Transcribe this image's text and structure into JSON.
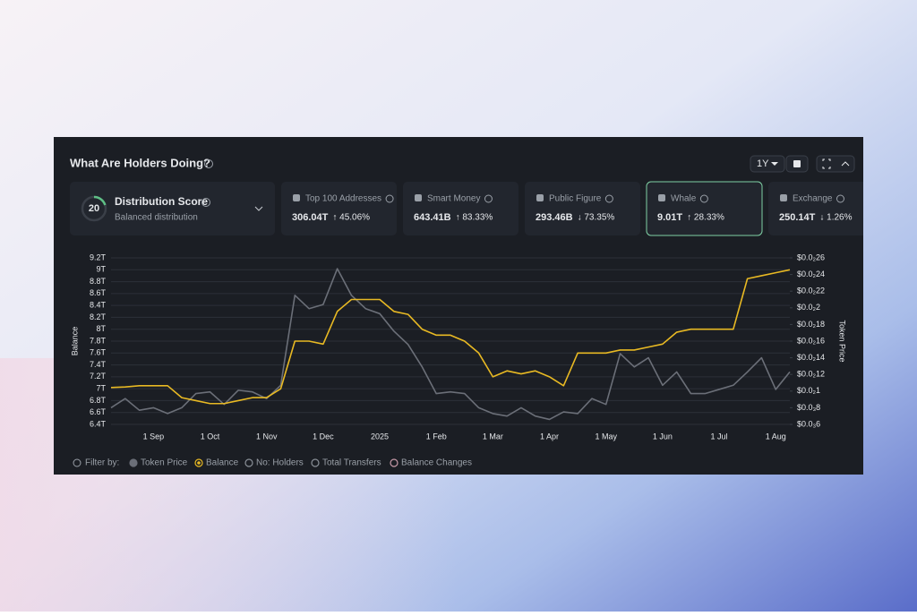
{
  "header": {
    "title": "What Are Holders Doing?",
    "range": "1Y"
  },
  "distribution": {
    "score": 20,
    "title": "Distribution Score",
    "subtitle": "Balanced distribution"
  },
  "cards": [
    {
      "title": "Top 100 Addresses",
      "value": "306.04T",
      "change": "↑ 45.06%",
      "color": "#5fbf86"
    },
    {
      "title": "Smart Money",
      "value": "643.41B",
      "change": "↑ 83.33%",
      "color": "#5fbf86"
    },
    {
      "title": "Public Figure",
      "value": "293.46B",
      "change": "↓ 73.35%",
      "color": "#d9736e"
    },
    {
      "title": "Whale",
      "value": "9.01T",
      "change": "↑ 28.33%",
      "color": "#5fbf86",
      "selected": true
    },
    {
      "title": "Exchange",
      "value": "250.14T",
      "change": "↓ 1.26%",
      "color": "#d9736e"
    }
  ],
  "chart_data": {
    "type": "line",
    "ylabel": "Balance",
    "y2label": "Token Price",
    "categories": [
      null,
      null,
      null,
      "1 Sep",
      null,
      null,
      null,
      "1 Oct",
      null,
      null,
      null,
      "1 Nov",
      null,
      null,
      null,
      "1 Dec",
      null,
      null,
      null,
      "2025",
      null,
      null,
      null,
      "1 Feb",
      null,
      null,
      null,
      "1 Mar",
      null,
      null,
      null,
      "1 Apr",
      null,
      null,
      null,
      "1 May",
      null,
      null,
      null,
      "1 Jun",
      null,
      null,
      null,
      "1 Jul",
      null,
      null,
      null,
      "1 Aug",
      null
    ],
    "series": [
      {
        "name": "Token Price",
        "color": "#6b6f78",
        "axis": "y2",
        "values": [
          0.0008,
          0.00091,
          0.00077,
          0.0008,
          0.00073,
          0.0008,
          0.00097,
          0.00099,
          0.00084,
          0.00101,
          0.00099,
          0.00091,
          0.00107,
          0.00215,
          0.00199,
          0.00204,
          0.00247,
          0.00215,
          0.00199,
          0.00193,
          0.00172,
          0.00156,
          0.00129,
          0.00097,
          0.00099,
          0.00097,
          0.0008,
          0.00073,
          0.0007,
          0.0008,
          0.0007,
          0.00066,
          0.00075,
          0.00073,
          0.00091,
          0.00084,
          0.00145,
          0.00129,
          0.0014,
          0.00107,
          0.00123,
          0.00097,
          0.00097,
          0.00102,
          0.00107,
          0.00123,
          0.0014,
          0.00102,
          0.00123
        ]
      },
      {
        "name": "Balance",
        "color": "#e8b923",
        "values": [
          7.02,
          7.03,
          7.05,
          7.05,
          7.05,
          6.85,
          6.8,
          6.75,
          6.75,
          6.8,
          6.85,
          6.85,
          7.0,
          7.8,
          7.8,
          7.75,
          8.3,
          8.5,
          8.5,
          8.5,
          8.3,
          8.25,
          8.0,
          7.9,
          7.9,
          7.8,
          7.6,
          7.2,
          7.3,
          7.25,
          7.3,
          7.2,
          7.05,
          7.6,
          7.6,
          7.6,
          7.65,
          7.65,
          7.7,
          7.75,
          7.95,
          8.0,
          8.0,
          8.0,
          8.0,
          8.85,
          8.9,
          8.95,
          9.0
        ]
      }
    ],
    "ylim": [
      6.4,
      9.2
    ],
    "yticks": [
      {
        "value": 9.2,
        "label": "9.2T"
      },
      {
        "value": 9,
        "label": "9T"
      },
      {
        "value": 8.8,
        "label": "8.8T"
      },
      {
        "value": 8.6,
        "label": "8.6T"
      },
      {
        "value": 8.4,
        "label": "8.4T"
      },
      {
        "value": 8.2,
        "label": "8.2T"
      },
      {
        "value": 8,
        "label": "8T"
      },
      {
        "value": 7.8,
        "label": "7.8T"
      },
      {
        "value": 7.6,
        "label": "7.6T"
      },
      {
        "value": 7.4,
        "label": "7.4T"
      },
      {
        "value": 7.2,
        "label": "7.2T"
      },
      {
        "value": 7,
        "label": "7T"
      },
      {
        "value": 6.8,
        "label": "6.8T"
      },
      {
        "value": 6.6,
        "label": "6.6T"
      },
      {
        "value": 6.4,
        "label": "6.4T"
      }
    ],
    "y2lim": [
      0.0006,
      0.0026
    ],
    "y2ticks": [
      {
        "value": 0.0026,
        "label": "$0.0₂26"
      },
      {
        "value": 0.0024,
        "label": "$0.0₂24"
      },
      {
        "value": 0.0022,
        "label": "$0.0₂22"
      },
      {
        "value": 0.002,
        "label": "$0.0₂2"
      },
      {
        "value": 0.0018,
        "label": "$0.0₂18"
      },
      {
        "value": 0.0016,
        "label": "$0.0₂16"
      },
      {
        "value": 0.0014,
        "label": "$0.0₂14"
      },
      {
        "value": 0.0012,
        "label": "$0.0₂12"
      },
      {
        "value": 0.001,
        "label": "$0.0₂1"
      },
      {
        "value": 0.0008,
        "label": "$0.0₃8"
      },
      {
        "value": 0.0006,
        "label": "$0.0₃6"
      }
    ],
    "grid": true
  },
  "filters": {
    "label": "Filter by:",
    "others": [
      "No: Holders",
      "Total Transfers",
      "Balance Changes"
    ]
  }
}
